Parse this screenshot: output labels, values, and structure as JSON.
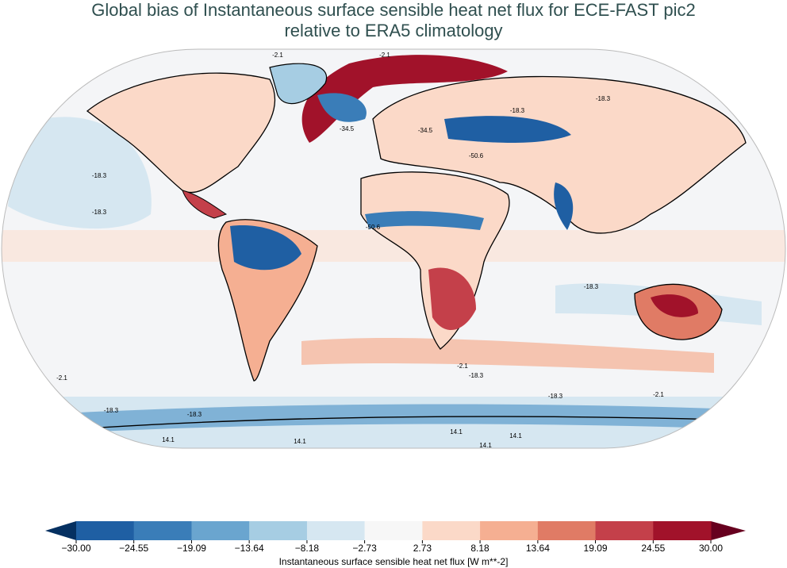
{
  "title": [
    "Global bias of Instantaneous surface sensible heat net flux for ECE-FAST pic2",
    "relative to ERA5 climatology"
  ],
  "map": {
    "contour_labels": [
      "-2.1",
      "-2.1",
      "-18.3",
      "-18.3",
      "-18.3",
      "-18.3",
      "-18.3",
      "-34.5",
      "-34.5",
      "-50.6",
      "-50.6",
      "-18.3",
      "-18.3",
      "-2.1",
      "-2.1",
      "-2.1",
      "14.1",
      "14.1",
      "14.1",
      "14.1",
      "14.1",
      "-18.3",
      "-18.3"
    ]
  },
  "colorbar": {
    "label": "Instantaneous surface sensible heat net flux [W m**-2]",
    "ticks": [
      {
        "value": -30,
        "label": "−30.00"
      },
      {
        "value": -24.55,
        "label": "−24.55"
      },
      {
        "value": -19.09,
        "label": "−19.09"
      },
      {
        "value": -13.64,
        "label": "−13.64"
      },
      {
        "value": -8.18,
        "label": "−8.18"
      },
      {
        "value": -2.73,
        "label": "−2.73"
      },
      2.73,
      8.18,
      13.64,
      19.09,
      24.55,
      {
        "value": 30,
        "label": "30.00"
      }
    ],
    "colors": [
      "#1f5fa3",
      "#3a7db8",
      "#6aa5cf",
      "#a6cde3",
      "#d6e7f1",
      "#f7f7f7",
      "#fbd9c8",
      "#f5af92",
      "#e07b65",
      "#c4404a",
      "#a1122a"
    ],
    "under_color": "#053061",
    "over_color": "#67001f"
  }
}
